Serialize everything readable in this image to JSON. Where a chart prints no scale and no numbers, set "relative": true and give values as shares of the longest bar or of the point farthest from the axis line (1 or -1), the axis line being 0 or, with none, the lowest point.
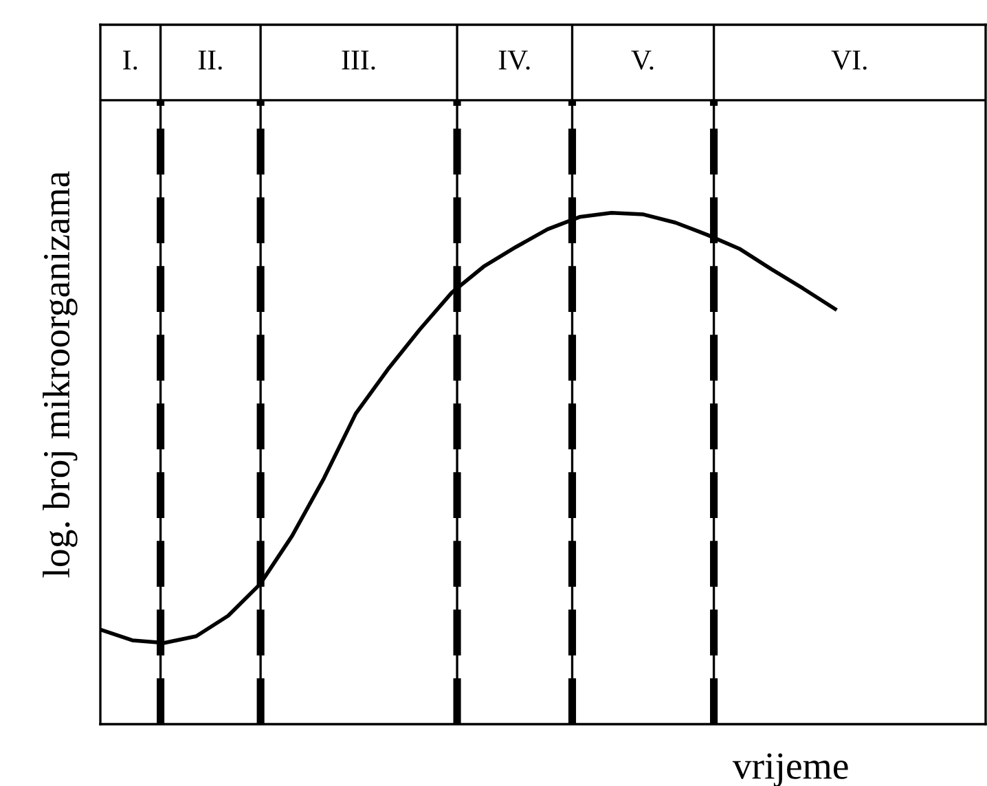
{
  "chart_data": {
    "type": "line",
    "relative": true,
    "xlabel": "vrijeme",
    "ylabel": "log. broj mikroorganizama",
    "categories": [
      null,
      null,
      null,
      null,
      null,
      null,
      null,
      null,
      null,
      null,
      null,
      null,
      null,
      null,
      null,
      null,
      null,
      null,
      null,
      null,
      null,
      null,
      null,
      null
    ],
    "series": [
      {
        "color": "#000000",
        "values": [
          0.185,
          0.164,
          0.159,
          0.172,
          0.212,
          0.274,
          0.368,
          0.481,
          0.608,
          0.694,
          0.772,
          0.844,
          0.895,
          0.933,
          0.968,
          0.992,
          1,
          0.997,
          0.981,
          0.957,
          0.93,
          0.89,
          0.852,
          0.812
        ]
      }
    ],
    "legend": false,
    "marker": "none",
    "line_style": "solid",
    "annotations": [
      "I.",
      "II.",
      "III.",
      "IV.",
      "V.",
      "VI."
    ]
  }
}
